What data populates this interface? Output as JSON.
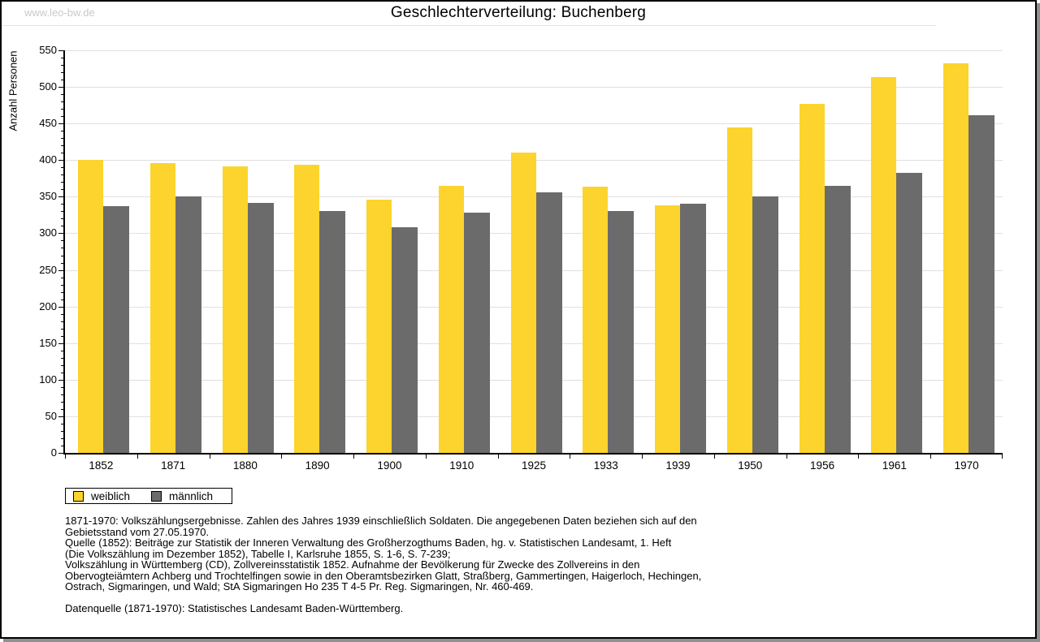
{
  "page": {
    "watermark": "www.leo-bw.de",
    "title": "Geschlechterverteilung: Buchenberg"
  },
  "chart_data": {
    "type": "bar",
    "title": "Geschlechterverteilung: Buchenberg",
    "xlabel": "",
    "ylabel": "Anzahl Personen",
    "ylim": [
      0,
      550
    ],
    "ytick_step": 50,
    "ytick_minor_step": 10,
    "grid": true,
    "legend_position": "bottom-left",
    "categories": [
      "1852",
      "1871",
      "1880",
      "1890",
      "1900",
      "1910",
      "1925",
      "1933",
      "1939",
      "1950",
      "1956",
      "1961",
      "1970"
    ],
    "series": [
      {
        "name": "weiblich",
        "color": "#FCD42D",
        "values": [
          400,
          396,
          391,
          394,
          346,
          365,
          410,
          364,
          338,
          445,
          477,
          513,
          532
        ]
      },
      {
        "name": "männlich",
        "color": "#6B6B6B",
        "values": [
          337,
          350,
          341,
          330,
          308,
          328,
          356,
          331,
          340,
          350,
          365,
          383,
          461
        ]
      }
    ]
  },
  "footer": {
    "lines": [
      "1871-1970: Volkszählungsergebnisse. Zahlen des Jahres 1939 einschließlich Soldaten. Die angegebenen Daten beziehen sich auf den",
      "Gebietsstand vom 27.05.1970.",
      "Quelle (1852): Beiträge zur Statistik der Inneren Verwaltung des Großherzogthums Baden, hg. v. Statistischen Landesamt, 1. Heft",
      "(Die Volkszählung im Dezember 1852), Tabelle I, Karlsruhe 1855, S. 1-6, S. 7-239;",
      "Volkszählung in Württemberg (CD), Zollvereinsstatistik 1852. Aufnahme der Bevölkerung für Zwecke des Zollvereins in den",
      "Obervogteiämtern Achberg und Trochtelfingen sowie in den Oberamtsbezirken Glatt, Straßberg, Gammertingen, Haigerloch, Hechingen,",
      "Ostrach, Sigmaringen, und Wald; StA Sigmaringen Ho 235 T 4-5 Pr. Reg. Sigmaringen, Nr. 460-469.",
      "",
      "Datenquelle (1871-1970): Statistisches Landesamt Baden-Württemberg."
    ]
  },
  "colors": {
    "bar_weiblich": "#FCD42D",
    "bar_maennlich": "#6B6B6B",
    "gridline": "#E0E0E0",
    "watermark": "#C9C9C9",
    "frame_shadow": "#909090"
  }
}
